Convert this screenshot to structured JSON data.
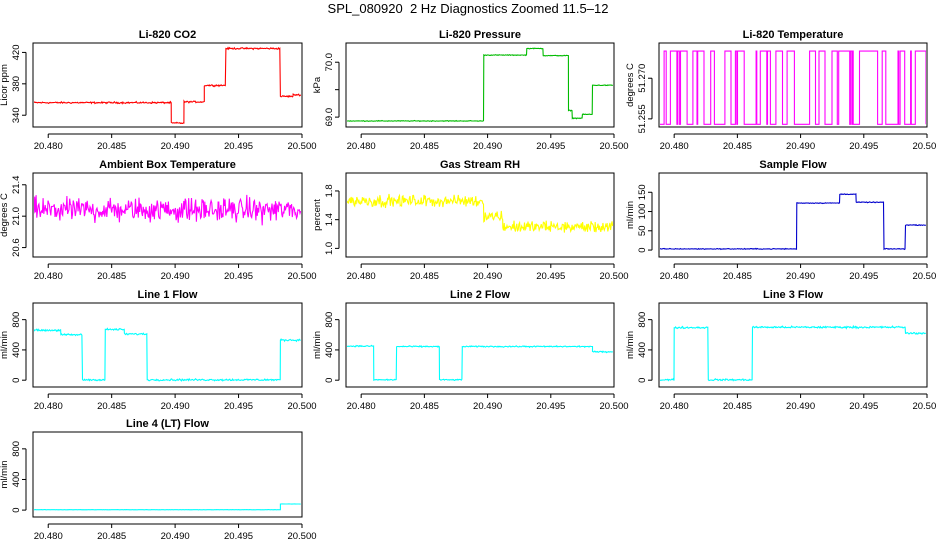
{
  "title": "SPL_080920  2 Hz Diagnostics Zoomed 11.5–12",
  "chart_data": [
    {
      "type": "line",
      "title": "Li-820 CO2",
      "xlabel": "",
      "ylabel": "Licor ppm",
      "color": "#ff0000",
      "noise": 1.5,
      "ylim": [
        325,
        432
      ],
      "yticks": [
        340,
        380,
        420
      ],
      "xlim": [
        20.4788,
        20.5
      ],
      "xticks": [
        20.48,
        20.485,
        20.49,
        20.495,
        20.5
      ],
      "xticklabels": [
        "20.480",
        "20.485",
        "20.490",
        "20.495",
        "20.500"
      ],
      "segments": [
        [
          20.4788,
          20.4897,
          356
        ],
        [
          20.4897,
          20.4907,
          330
        ],
        [
          20.4907,
          20.4923,
          357
        ],
        [
          20.4923,
          20.494,
          378
        ],
        [
          20.494,
          20.4983,
          425
        ],
        [
          20.4983,
          20.4993,
          364
        ],
        [
          20.4993,
          20.5,
          366
        ]
      ]
    },
    {
      "type": "line",
      "title": "Li-820 Pressure",
      "xlabel": "",
      "ylabel": "kPa",
      "color": "#00bb00",
      "noise": 0.01,
      "ylim": [
        68.82,
        70.35
      ],
      "yticks": [
        69.0,
        69.5,
        70.0
      ],
      "yticklabels": [
        "69.0",
        "",
        "70.0"
      ],
      "xlim": [
        20.4788,
        20.5
      ],
      "xticks": [
        20.48,
        20.485,
        20.49,
        20.495,
        20.5
      ],
      "xticklabels": [
        "20.480",
        "20.485",
        "20.490",
        "20.495",
        "20.500"
      ],
      "segments": [
        [
          20.4788,
          20.4897,
          68.93
        ],
        [
          20.4897,
          20.4931,
          70.13
        ],
        [
          20.4931,
          20.4944,
          70.25
        ],
        [
          20.4944,
          20.4964,
          70.12
        ],
        [
          20.4964,
          20.4967,
          69.12
        ],
        [
          20.4967,
          20.4975,
          68.98
        ],
        [
          20.4975,
          20.4983,
          69.05
        ],
        [
          20.4983,
          20.5,
          69.58
        ]
      ]
    },
    {
      "type": "line",
      "title": "Li-820 Temperature",
      "xlabel": "",
      "ylabel": "degrees C",
      "color": "#ff00ff",
      "ylim": [
        51.252,
        51.283
      ],
      "yticks": [
        51.255,
        51.27
      ],
      "yticklabels": [
        "51.255",
        "51.270"
      ],
      "xlim": [
        20.4788,
        20.5
      ],
      "xticks": [
        20.48,
        20.485,
        20.49,
        20.495,
        20.5
      ],
      "xticklabels": [
        "20.480",
        "20.485",
        "20.490",
        "20.495",
        "20.500"
      ],
      "digital_levels": [
        51.253,
        51.28
      ]
    },
    {
      "type": "line",
      "title": "Ambient Box Temperature",
      "xlabel": "",
      "ylabel": "degrees C",
      "color": "#ff00ff",
      "noise": 0.22,
      "ylim": [
        20.48,
        21.55
      ],
      "yticks": [
        20.6,
        21.0,
        21.4
      ],
      "yticklabels": [
        "20.6",
        "21.0",
        "21.4"
      ],
      "xlim": [
        20.4788,
        20.5
      ],
      "xticks": [
        20.48,
        20.485,
        20.49,
        20.495,
        20.5
      ],
      "xticklabels": [
        "20.480",
        "20.485",
        "20.490",
        "20.495",
        "20.500"
      ],
      "segments": [
        [
          20.4788,
          20.5,
          21.08
        ]
      ]
    },
    {
      "type": "line",
      "title": "Gas Stream RH",
      "xlabel": "",
      "ylabel": "percent",
      "color": "#ffff00",
      "noise": 0.12,
      "ylim": [
        0.88,
        2.05
      ],
      "yticks": [
        1.0,
        1.4,
        1.8
      ],
      "yticklabels": [
        "1.0",
        "1.4",
        "1.8"
      ],
      "xlim": [
        20.4788,
        20.5
      ],
      "xticks": [
        20.48,
        20.485,
        20.49,
        20.495,
        20.5
      ],
      "xticklabels": [
        "20.480",
        "20.485",
        "20.490",
        "20.495",
        "20.500"
      ],
      "segments": [
        [
          20.4788,
          20.4897,
          1.66
        ],
        [
          20.4897,
          20.4912,
          1.45
        ],
        [
          20.4912,
          20.5,
          1.3
        ]
      ]
    },
    {
      "type": "line",
      "title": "Sample Flow",
      "xlabel": "",
      "ylabel": "ml/min",
      "color": "#0000cc",
      "noise": 1.5,
      "ylim": [
        -18,
        200
      ],
      "yticks": [
        0,
        50,
        100,
        150
      ],
      "yticklabels": [
        "0",
        "50",
        "100",
        "150"
      ],
      "xlim": [
        20.4788,
        20.5
      ],
      "xticks": [
        20.48,
        20.485,
        20.49,
        20.495,
        20.5
      ],
      "xticklabels": [
        "20.480",
        "20.485",
        "20.490",
        "20.495",
        "20.500"
      ],
      "segments": [
        [
          20.4788,
          20.4897,
          3
        ],
        [
          20.4897,
          20.4931,
          122
        ],
        [
          20.4931,
          20.4944,
          145
        ],
        [
          20.4944,
          20.4966,
          124
        ],
        [
          20.4966,
          20.4983,
          3
        ],
        [
          20.4983,
          20.5,
          65
        ]
      ]
    },
    {
      "type": "line",
      "title": "Line 1 Flow",
      "xlabel": "",
      "ylabel": "ml/min",
      "color": "#00ffff",
      "noise": 18,
      "ylim": [
        -90,
        1020
      ],
      "yticks": [
        0,
        400,
        800
      ],
      "yticklabels": [
        "0",
        "400",
        "800"
      ],
      "xlim": [
        20.4788,
        20.5
      ],
      "xticks": [
        20.48,
        20.485,
        20.49,
        20.495,
        20.5
      ],
      "xticklabels": [
        "20.480",
        "20.485",
        "20.490",
        "20.495",
        "20.500"
      ],
      "segments": [
        [
          20.4788,
          20.481,
          660
        ],
        [
          20.481,
          20.4827,
          600
        ],
        [
          20.4827,
          20.4845,
          5
        ],
        [
          20.4845,
          20.486,
          670
        ],
        [
          20.486,
          20.4878,
          610
        ],
        [
          20.4878,
          20.4983,
          5
        ],
        [
          20.4983,
          20.5,
          530
        ]
      ]
    },
    {
      "type": "line",
      "title": "Line 2 Flow",
      "xlabel": "",
      "ylabel": "ml/min",
      "color": "#00ffff",
      "noise": 12,
      "ylim": [
        -90,
        1020
      ],
      "yticks": [
        0,
        400,
        800
      ],
      "yticklabels": [
        "0",
        "400",
        "800"
      ],
      "xlim": [
        20.4788,
        20.5
      ],
      "xticks": [
        20.48,
        20.485,
        20.49,
        20.495,
        20.5
      ],
      "xticklabels": [
        "20.480",
        "20.485",
        "20.490",
        "20.495",
        "20.500"
      ],
      "segments": [
        [
          20.4788,
          20.481,
          450
        ],
        [
          20.481,
          20.4828,
          5
        ],
        [
          20.4828,
          20.4862,
          445
        ],
        [
          20.4862,
          20.488,
          5
        ],
        [
          20.488,
          20.4983,
          445
        ],
        [
          20.4983,
          20.5,
          375
        ]
      ]
    },
    {
      "type": "line",
      "title": "Line 3 Flow",
      "xlabel": "",
      "ylabel": "ml/min",
      "color": "#00ffff",
      "noise": 18,
      "ylim": [
        -90,
        1020
      ],
      "yticks": [
        0,
        400,
        800
      ],
      "yticklabels": [
        "0",
        "400",
        "800"
      ],
      "xlim": [
        20.4788,
        20.5
      ],
      "xticks": [
        20.48,
        20.485,
        20.49,
        20.495,
        20.5
      ],
      "xticklabels": [
        "20.480",
        "20.485",
        "20.490",
        "20.495",
        "20.500"
      ],
      "segments": [
        [
          20.4788,
          20.48,
          5
        ],
        [
          20.48,
          20.4827,
          695
        ],
        [
          20.4827,
          20.4845,
          5
        ],
        [
          20.4845,
          20.4862,
          5
        ],
        [
          20.4862,
          20.4983,
          700
        ],
        [
          20.4983,
          20.5,
          620
        ]
      ]
    },
    {
      "type": "line",
      "title": "Line 4 (LT) Flow",
      "xlabel": "",
      "ylabel": "ml/min",
      "color": "#00ffff",
      "noise": 2,
      "ylim": [
        -90,
        1020
      ],
      "yticks": [
        0,
        400,
        800
      ],
      "yticklabels": [
        "0",
        "400",
        "800"
      ],
      "xlim": [
        20.4788,
        20.5
      ],
      "xticks": [
        20.48,
        20.485,
        20.49,
        20.495,
        20.5
      ],
      "xticklabels": [
        "20.480",
        "20.485",
        "20.490",
        "20.495",
        "20.500"
      ],
      "segments": [
        [
          20.4788,
          20.4983,
          5
        ],
        [
          20.4983,
          20.5,
          80
        ]
      ]
    }
  ]
}
